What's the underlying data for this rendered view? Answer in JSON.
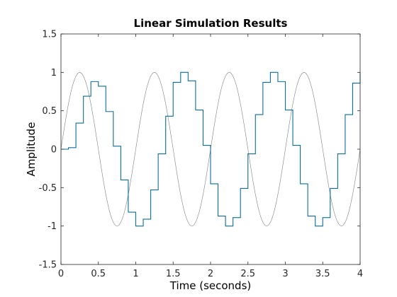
{
  "chart_data": {
    "type": "line",
    "title": "Linear Simulation Results",
    "xlabel": "Time (seconds)",
    "ylabel": "Amplitude",
    "xlim": [
      0,
      4
    ],
    "ylim": [
      -1.5,
      1.5
    ],
    "xticks": [
      0,
      0.5,
      1,
      1.5,
      2,
      2.5,
      3,
      3.5,
      4
    ],
    "xtick_labels": [
      "0",
      "0.5",
      "1",
      "1.5",
      "2",
      "2.5",
      "3",
      "3.5",
      "4"
    ],
    "yticks": [
      -1.5,
      -1,
      -0.5,
      0,
      0.5,
      1,
      1.5
    ],
    "ytick_labels": [
      "-1.5",
      "-1",
      "-0.5",
      "0",
      "0.5",
      "1",
      "1.5"
    ],
    "grid": false,
    "box": true,
    "series": [
      {
        "style": "line",
        "color": "#808080",
        "x": [
          0,
          0.05,
          0.1,
          0.15,
          0.2,
          0.25,
          0.3,
          0.35,
          0.4,
          0.45,
          0.5,
          0.55,
          0.6,
          0.65,
          0.7,
          0.75,
          0.8,
          0.85,
          0.9,
          0.95,
          1.0,
          1.05,
          1.1,
          1.15,
          1.2,
          1.25,
          1.3,
          1.35,
          1.4,
          1.45,
          1.5,
          1.55,
          1.6,
          1.65,
          1.7,
          1.75,
          1.8,
          1.85,
          1.9,
          1.95,
          2.0,
          2.05,
          2.1,
          2.15,
          2.2,
          2.25,
          2.3,
          2.35,
          2.4,
          2.45,
          2.5,
          2.55,
          2.6,
          2.65,
          2.7,
          2.75,
          2.8,
          2.85,
          2.9,
          2.95,
          3.0,
          3.05,
          3.1,
          3.15,
          3.2,
          3.25,
          3.3,
          3.35,
          3.4,
          3.45,
          3.5,
          3.55,
          3.6,
          3.65,
          3.7,
          3.75,
          3.8,
          3.85,
          3.9,
          3.95,
          4.0
        ],
        "y": [
          0,
          0.31,
          0.59,
          0.81,
          0.95,
          1.0,
          0.95,
          0.81,
          0.59,
          0.31,
          0,
          -0.31,
          -0.59,
          -0.81,
          -0.95,
          -1.0,
          -0.95,
          -0.81,
          -0.59,
          -0.31,
          0,
          0.31,
          0.59,
          0.81,
          0.95,
          1.0,
          0.95,
          0.81,
          0.59,
          0.31,
          0,
          -0.31,
          -0.59,
          -0.81,
          -0.95,
          -1.0,
          -0.95,
          -0.81,
          -0.59,
          -0.31,
          0,
          0.31,
          0.59,
          0.81,
          0.95,
          1.0,
          0.95,
          0.81,
          0.59,
          0.31,
          0,
          -0.31,
          -0.59,
          -0.81,
          -0.95,
          -1.0,
          -0.95,
          -0.81,
          -0.59,
          -0.31,
          0,
          0.31,
          0.59,
          0.81,
          0.95,
          1.0,
          0.95,
          0.81,
          0.59,
          0.31,
          0,
          -0.31,
          -0.59,
          -0.81,
          -0.95,
          -1.0,
          -0.95,
          -0.81,
          -0.59,
          -0.31,
          0
        ]
      },
      {
        "style": "stairs",
        "color": "#0e6e9a",
        "x": [
          0,
          0.1,
          0.2,
          0.3,
          0.4,
          0.5,
          0.6,
          0.7,
          0.8,
          0.9,
          1.0,
          1.1,
          1.2,
          1.3,
          1.4,
          1.5,
          1.6,
          1.7,
          1.8,
          1.9,
          2.0,
          2.1,
          2.2,
          2.3,
          2.4,
          2.5,
          2.6,
          2.7,
          2.8,
          2.9,
          3.0,
          3.1,
          3.2,
          3.3,
          3.4,
          3.5,
          3.6,
          3.7,
          3.8,
          3.9,
          4.0
        ],
        "y": [
          0,
          0.02,
          0.34,
          0.69,
          0.88,
          0.82,
          0.49,
          0.04,
          -0.4,
          -0.82,
          -1.0,
          -0.91,
          -0.53,
          -0.06,
          0.43,
          0.87,
          1.0,
          0.89,
          0.51,
          0.05,
          -0.45,
          -0.87,
          -1.0,
          -0.89,
          -0.51,
          -0.06,
          0.45,
          0.87,
          1.0,
          0.88,
          0.51,
          0.05,
          -0.45,
          -0.87,
          -1.0,
          -0.89,
          -0.51,
          -0.06,
          0.45,
          0.86,
          1.0
        ]
      }
    ]
  }
}
